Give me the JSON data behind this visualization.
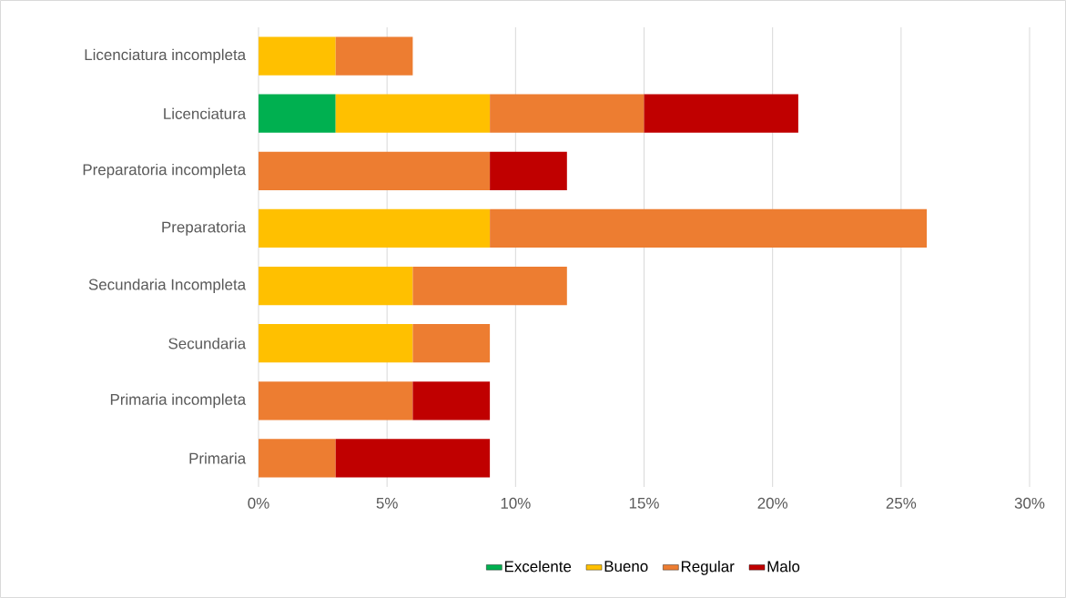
{
  "chart_data": {
    "type": "bar",
    "orientation": "horizontal",
    "stacked": true,
    "categories": [
      "Licenciatura incompleta",
      "Licenciatura",
      "Preparatoria incompleta",
      "Preparatoria",
      "Secundaria Incompleta",
      "Secundaria",
      "Primaria incompleta",
      "Primaria"
    ],
    "series": [
      {
        "name": "Excelente",
        "color": "#00b050",
        "values": [
          null,
          3,
          null,
          null,
          null,
          null,
          null,
          null
        ]
      },
      {
        "name": "Bueno",
        "color": "#ffc000",
        "values": [
          3,
          6,
          null,
          9,
          6,
          6,
          null,
          null
        ]
      },
      {
        "name": "Regular",
        "color": "#ed7d31",
        "values": [
          3,
          6,
          9,
          17,
          6,
          3,
          6,
          3
        ]
      },
      {
        "name": "Malo",
        "color": "#c00000",
        "values": [
          null,
          6,
          3,
          null,
          null,
          null,
          3,
          6
        ]
      }
    ],
    "xlim": [
      0,
      30
    ],
    "xticks": [
      {
        "value": 0,
        "label": "0%"
      },
      {
        "value": 5,
        "label": "5%"
      },
      {
        "value": 10,
        "label": "10%"
      },
      {
        "value": 15,
        "label": "15%"
      },
      {
        "value": 20,
        "label": "20%"
      },
      {
        "value": 25,
        "label": "25%"
      },
      {
        "value": 30,
        "label": "30%"
      }
    ],
    "grid": "x",
    "legend": "bottom"
  }
}
